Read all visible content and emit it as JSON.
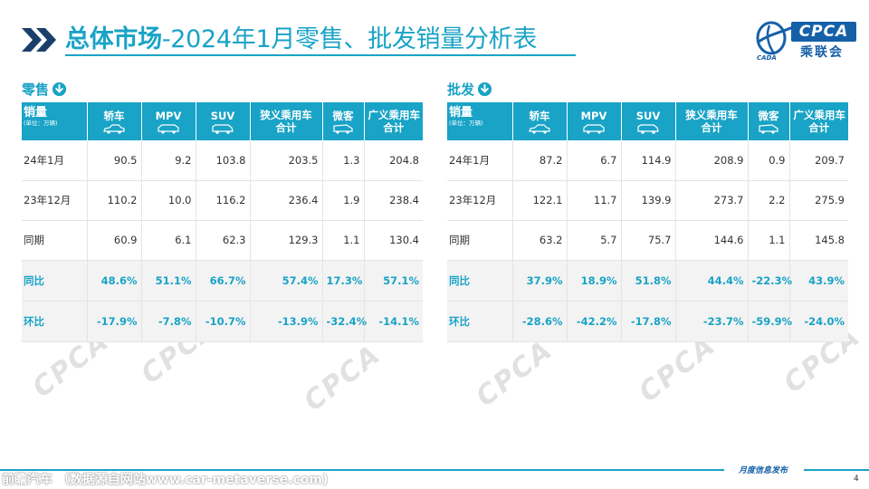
{
  "header": {
    "title_bold": "总体市场",
    "title_rest": "-2024年1月零售、批发销量分析表"
  },
  "logo": {
    "mark": "CPCA",
    "cn": "乘联会",
    "sub": "CADA"
  },
  "sections": [
    {
      "key": "retail",
      "label": "零售",
      "table": {
        "corner_main": "销量",
        "corner_sub": "(单位：万辆)",
        "columns": [
          "轿车",
          "MPV",
          "SUV",
          "狭义乘用车合计",
          "微客",
          "广义乘用车合计"
        ],
        "rows": [
          {
            "label": "24年1月",
            "kind": "data",
            "values": [
              "90.5",
              "9.2",
              "103.8",
              "203.5",
              "1.3",
              "204.8"
            ]
          },
          {
            "label": "23年12月",
            "kind": "data",
            "values": [
              "110.2",
              "10.0",
              "116.2",
              "236.4",
              "1.9",
              "238.4"
            ]
          },
          {
            "label": "同期",
            "kind": "data",
            "values": [
              "60.9",
              "6.1",
              "62.3",
              "129.3",
              "1.1",
              "130.4"
            ]
          },
          {
            "label": "同比",
            "kind": "ratio",
            "values": [
              "48.6%",
              "51.1%",
              "66.7%",
              "57.4%",
              "17.3%",
              "57.1%"
            ]
          },
          {
            "label": "环比",
            "kind": "ratio",
            "values": [
              "-17.9%",
              "-7.8%",
              "-10.7%",
              "-13.9%",
              "-32.4%",
              "-14.1%"
            ]
          }
        ]
      }
    },
    {
      "key": "wholesale",
      "label": "批发",
      "table": {
        "corner_main": "销量",
        "corner_sub": "(单位：万辆)",
        "columns": [
          "轿车",
          "MPV",
          "SUV",
          "狭义乘用车合计",
          "微客",
          "广义乘用车合计"
        ],
        "rows": [
          {
            "label": "24年1月",
            "kind": "data",
            "values": [
              "87.2",
              "6.7",
              "114.9",
              "208.9",
              "0.9",
              "209.7"
            ]
          },
          {
            "label": "23年12月",
            "kind": "data",
            "values": [
              "122.1",
              "11.7",
              "139.9",
              "273.7",
              "2.2",
              "275.9"
            ]
          },
          {
            "label": "同期",
            "kind": "data",
            "values": [
              "63.2",
              "5.7",
              "75.7",
              "144.6",
              "1.1",
              "145.8"
            ]
          },
          {
            "label": "同比",
            "kind": "ratio",
            "values": [
              "37.9%",
              "18.9%",
              "51.8%",
              "44.4%",
              "-22.3%",
              "43.9%"
            ]
          },
          {
            "label": "环比",
            "kind": "ratio",
            "values": [
              "-28.6%",
              "-42.2%",
              "-17.8%",
              "-23.7%",
              "-59.9%",
              "-24.0%"
            ]
          }
        ]
      }
    }
  ],
  "watermark": "CPCA",
  "footer": {
    "source": "前瞻汽车 （数据源自网站www.car-metaverse.com)",
    "publication": "月度信息发布",
    "page": "4"
  },
  "colors": {
    "accent": "#19a3c6",
    "brand": "#1660a8",
    "ratio_bg": "#f3f3f3"
  }
}
